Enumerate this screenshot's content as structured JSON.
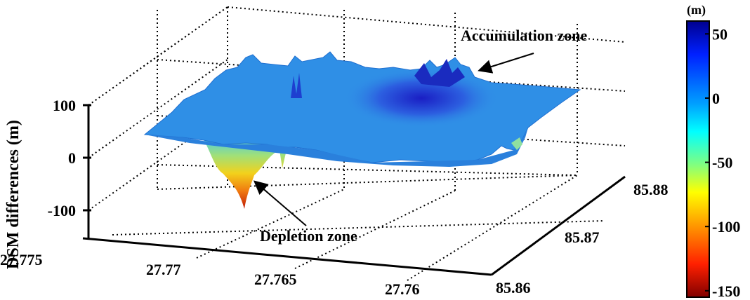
{
  "chart_data": {
    "type": "surface3d",
    "title": "",
    "z_axis": {
      "label": "DSM differences (m)",
      "ticks": [
        100,
        0,
        -100
      ]
    },
    "x_axis": {
      "label": "",
      "ticks": [
        27.775,
        27.77,
        27.765,
        27.76
      ]
    },
    "y_axis": {
      "label": "",
      "ticks": [
        85.86,
        85.87,
        85.88
      ]
    },
    "colorbar": {
      "unit": "(m)",
      "ticks": [
        50,
        0,
        -50,
        -100,
        -150
      ],
      "range": [
        -155,
        60
      ],
      "colormap": "jet"
    },
    "annotations": [
      {
        "text": "Accumulation zone",
        "target": "raised region near peak of surface"
      },
      {
        "text": "Depletion zone",
        "target": "deep depression on front-left of surface"
      }
    ],
    "grid": true
  },
  "colors": {
    "surface_main": "#2f8fe6",
    "surface_high": "#1a2fc8",
    "depletion_mid": "#f2c21b",
    "depletion_low": "#c8200a",
    "axis": "#000000"
  }
}
